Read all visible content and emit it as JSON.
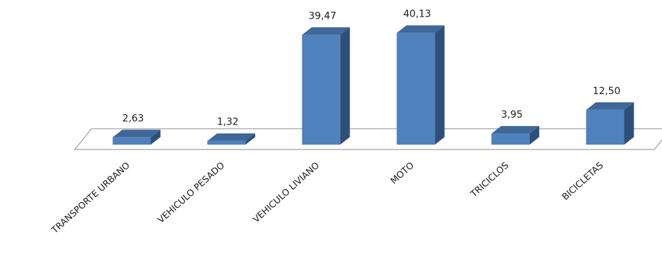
{
  "chart_data": {
    "type": "bar",
    "categories": [
      "TRANSPORTE URBANO",
      "VEHICULO PESADO",
      "VEHICULO LIVIANO",
      "MOTO",
      "TRICICLOS",
      "BICICLETAS"
    ],
    "values": [
      2.63,
      1.32,
      39.47,
      40.13,
      3.95,
      12.5
    ],
    "value_labels": [
      "2,63",
      "1,32",
      "39,47",
      "40,13",
      "3,95",
      "12,50"
    ],
    "style": "3d-column",
    "colors": {
      "front": "#4f81bd",
      "side": "#2e4f78",
      "top": "#3f6797",
      "floor_stroke": "#888888"
    },
    "grid": false,
    "legend": "none"
  }
}
